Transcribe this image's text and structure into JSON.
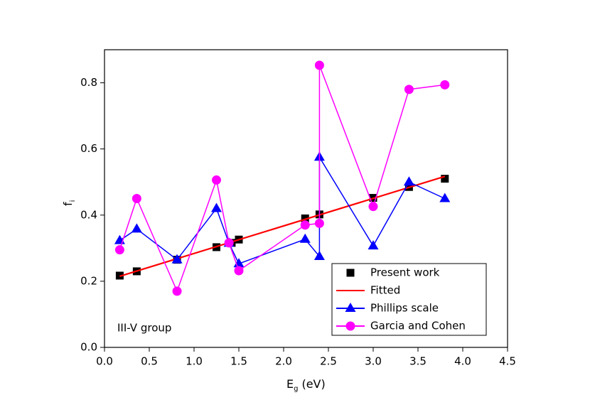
{
  "chart_data": {
    "type": "line",
    "xlabel": {
      "main": "E",
      "sub": "g",
      "rest": "(eV)"
    },
    "ylabel": {
      "main": "f",
      "sub": "i"
    },
    "annotation": "III-V group",
    "xlim": [
      0,
      4.5
    ],
    "ylim": [
      0,
      0.9
    ],
    "xticks": [
      {
        "value": 0,
        "label": "0.0"
      },
      0.5,
      {
        "value": 1,
        "label": "1.0"
      },
      1.5,
      {
        "value": 2,
        "label": "2.0"
      },
      2.5,
      {
        "value": 3,
        "label": "3.0"
      },
      3.5,
      {
        "value": 4,
        "label": "4.0"
      },
      4.5
    ],
    "yticks": [
      {
        "value": 0,
        "label": "0.0"
      },
      0.2,
      0.4,
      0.6,
      0.8
    ],
    "legend": "lower right",
    "series": [
      {
        "name": "Present work",
        "color": "#000000",
        "marker": "square",
        "line": false,
        "x": [
          0.17,
          0.36,
          0.81,
          1.25,
          1.42,
          1.5,
          2.24,
          2.4,
          3.0,
          3.4,
          3.8
        ],
        "values": [
          0.217,
          0.23,
          0.265,
          0.303,
          0.316,
          0.326,
          0.39,
          0.402,
          0.452,
          0.485,
          0.51
        ]
      },
      {
        "name": "Fitted",
        "color": "#ff0000",
        "marker": "none",
        "line": true,
        "x": [
          0.17,
          3.8
        ],
        "values": [
          0.215,
          0.517
        ]
      },
      {
        "name": "Phillips scale",
        "color": "#0000ff",
        "marker": "triangle",
        "line": true,
        "x": [
          0.17,
          0.36,
          0.81,
          1.25,
          1.39,
          1.5,
          2.24,
          2.4,
          2.4,
          3.0,
          3.4,
          3.8
        ],
        "values": [
          0.323,
          0.358,
          0.265,
          0.42,
          0.315,
          0.253,
          0.327,
          0.275,
          0.575,
          0.307,
          0.5,
          0.45
        ]
      },
      {
        "name": "Garcia and Cohen",
        "color": "#ff00ff",
        "marker": "circle",
        "line": true,
        "x": [
          0.17,
          0.36,
          0.81,
          1.25,
          1.39,
          1.5,
          2.24,
          2.4,
          2.4,
          3.0,
          3.4,
          3.8
        ],
        "values": [
          0.295,
          0.45,
          0.17,
          0.506,
          0.316,
          0.232,
          0.37,
          0.375,
          0.853,
          0.426,
          0.78,
          0.794
        ]
      }
    ]
  }
}
